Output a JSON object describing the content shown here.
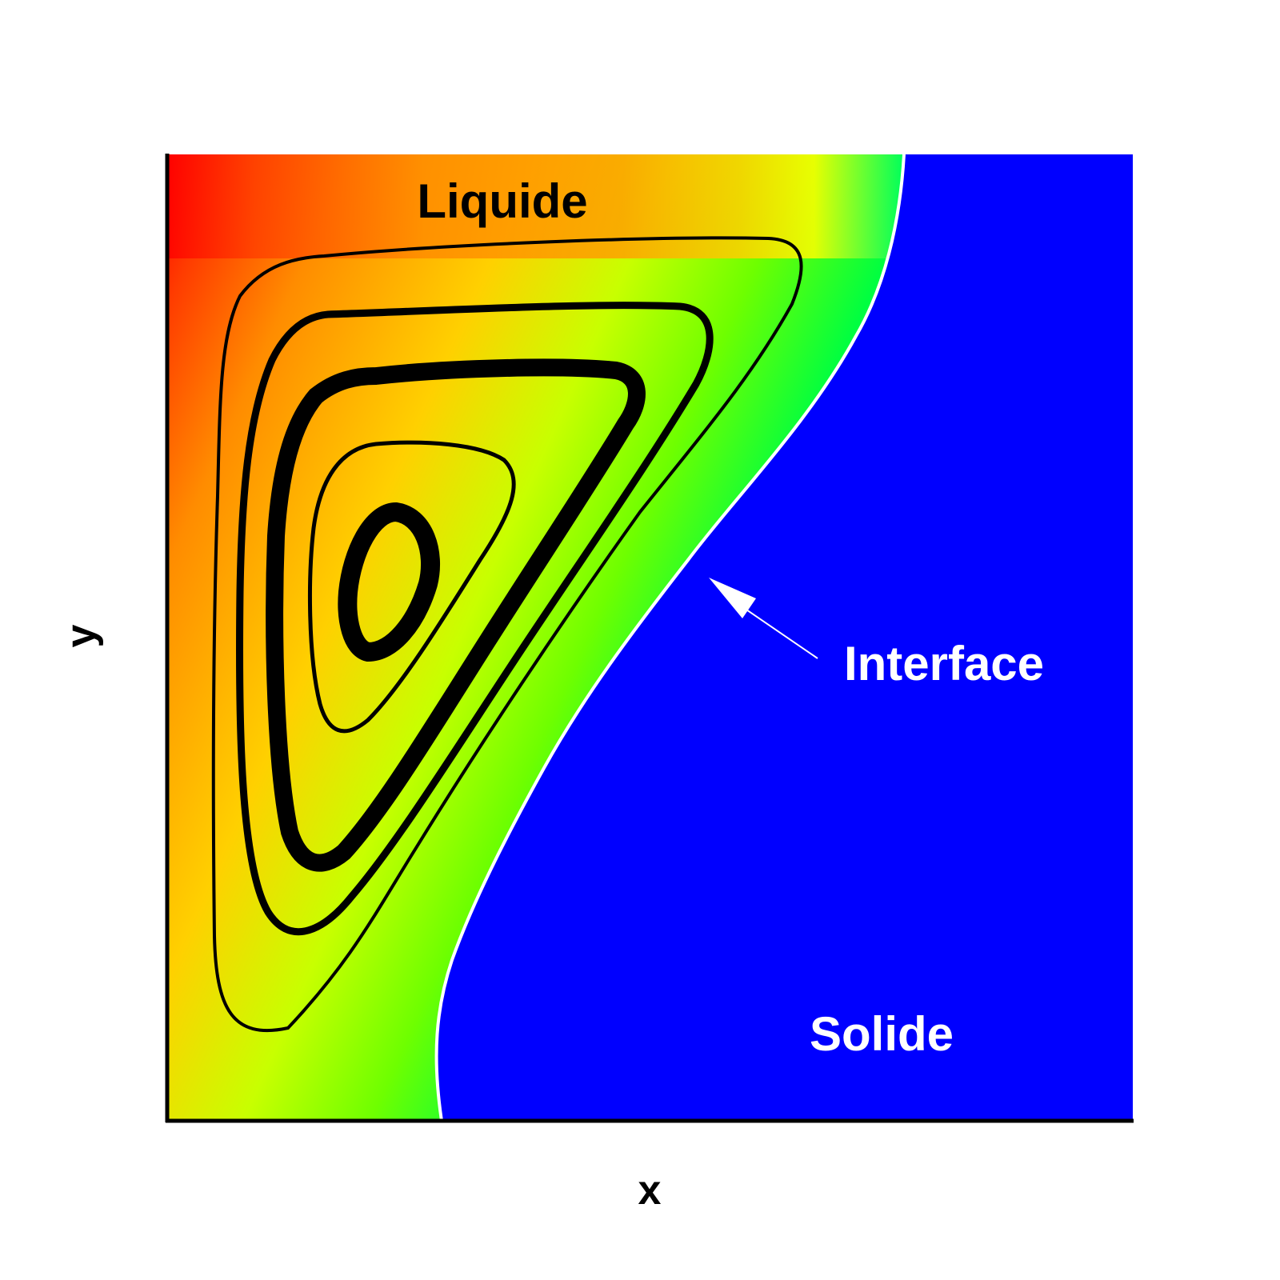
{
  "chart_data": {
    "type": "contour",
    "xlabel": "x",
    "ylabel": "y",
    "annotations": [
      {
        "name": "liquid-label",
        "text": "Liquide"
      },
      {
        "name": "interface-label",
        "text": "Interface"
      },
      {
        "name": "solid-label",
        "text": "Solide"
      }
    ],
    "colors": {
      "hot": "#ff0000",
      "warm": "#ff8c00",
      "mid": "#ffff00",
      "cool": "#00ff00",
      "cold": "#00ffff",
      "solid": "#0000ff",
      "streamline": "#000000",
      "interface": "#ffffff"
    }
  }
}
